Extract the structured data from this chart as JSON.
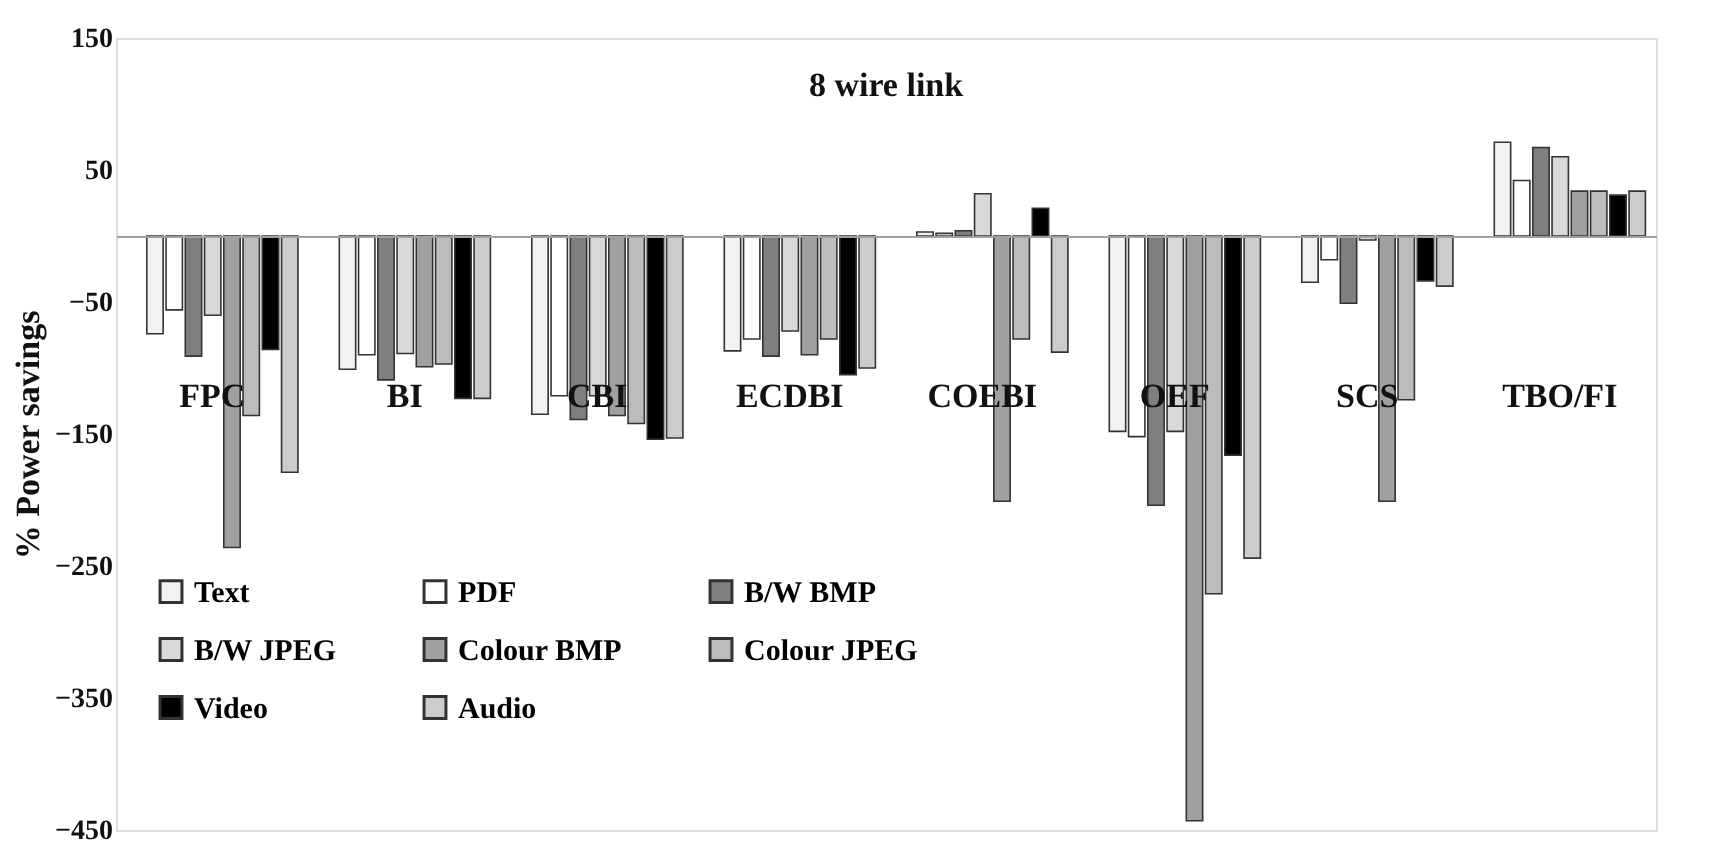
{
  "chart_data": {
    "type": "bar",
    "title": "8 wire link",
    "ylabel": "% Power savings",
    "categories": [
      "FPC",
      "BI",
      "CBI",
      "ECDBI",
      "COEBI",
      "OEF",
      "SCS",
      "TBO/FI"
    ],
    "series": [
      {
        "name": "Text",
        "color": "#f2f2f2",
        "values": [
          -74,
          -101,
          -135,
          -87,
          3,
          -148,
          -35,
          71
        ]
      },
      {
        "name": "PDF",
        "color": "#ffffff",
        "values": [
          -56,
          -90,
          -121,
          -78,
          2,
          -152,
          -18,
          42
        ]
      },
      {
        "name": "B/W BMP",
        "color": "#7f7f7f",
        "values": [
          -91,
          -109,
          -139,
          -91,
          4,
          -204,
          -51,
          67
        ]
      },
      {
        "name": "B/W JPEG",
        "color": "#d9d9d9",
        "values": [
          -60,
          -89,
          -121,
          -72,
          32,
          -148,
          -3,
          60
        ]
      },
      {
        "name": "Colour BMP",
        "color": "#a0a0a0",
        "values": [
          -236,
          -99,
          -136,
          -90,
          -201,
          -443,
          -201,
          34
        ]
      },
      {
        "name": "Colour JPEG",
        "color": "#bcbcbc",
        "values": [
          -136,
          -97,
          -142,
          -78,
          -78,
          -271,
          -124,
          34
        ]
      },
      {
        "name": "Video",
        "color": "#000000",
        "values": [
          -86,
          -123,
          -154,
          -105,
          21,
          -166,
          -34,
          31
        ]
      },
      {
        "name": "Audio",
        "color": "#cccccc",
        "values": [
          -179,
          -123,
          -153,
          -100,
          -88,
          -244,
          -38,
          34
        ]
      }
    ],
    "ylim": [
      -450,
      150
    ],
    "yticks": [
      150,
      50,
      -50,
      -150,
      -250,
      -350,
      -450
    ],
    "grid": false,
    "legend": "bottom left"
  }
}
